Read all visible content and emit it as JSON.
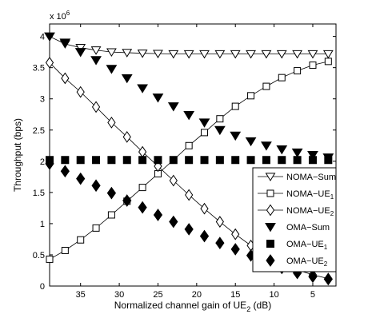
{
  "chart_data": {
    "type": "line",
    "xlabel": "Normalized channel gain of UE",
    "xlabel_sub": "2",
    "xlabel_unit": " (dB)",
    "ylabel": "Throughput (bps)",
    "y_multiplier_base": "x 10",
    "y_multiplier_exp": "6",
    "xlim": [
      39,
      2
    ],
    "x_reversed": true,
    "ylim": [
      0,
      4200000
    ],
    "x_ticks": [
      35,
      30,
      25,
      20,
      15,
      10,
      5
    ],
    "x_tick_labels": [
      "35",
      "30",
      "25",
      "20",
      "15",
      "10",
      "5"
    ],
    "y_ticks": [
      0,
      500000,
      1000000,
      1500000,
      2000000,
      2500000,
      3000000,
      3500000,
      4000000
    ],
    "y_tick_labels": [
      "0",
      "0.5",
      "1",
      "1.5",
      "2",
      "2.5",
      "3",
      "3.5",
      "4"
    ],
    "grid": false,
    "legend_position": "right",
    "series": [
      {
        "name": "NOMA−Sum",
        "name_sub": "",
        "marker": "triangle-down-open",
        "line": true,
        "x": [
          39,
          37,
          35,
          33,
          31,
          29,
          27,
          25,
          23,
          21,
          19,
          17,
          15,
          13,
          11,
          9,
          7,
          5,
          3
        ],
        "y": [
          4000000,
          3880000,
          3820000,
          3780000,
          3750000,
          3740000,
          3730000,
          3725000,
          3720000,
          3720000,
          3720000,
          3720000,
          3720000,
          3720000,
          3720000,
          3720000,
          3720000,
          3720000,
          3720000
        ]
      },
      {
        "name": "NOMA−UE",
        "name_sub": "1",
        "marker": "square-open",
        "line": true,
        "x": [
          39,
          37,
          35,
          33,
          31,
          29,
          27,
          25,
          23,
          21,
          19,
          17,
          15,
          13,
          11,
          9,
          7,
          5,
          3
        ],
        "y": [
          430000,
          570000,
          740000,
          930000,
          1140000,
          1360000,
          1580000,
          1800000,
          2020000,
          2250000,
          2460000,
          2680000,
          2880000,
          3050000,
          3200000,
          3340000,
          3450000,
          3540000,
          3600000
        ]
      },
      {
        "name": "NOMA−UE",
        "name_sub": "2",
        "marker": "diamond-open",
        "line": true,
        "x": [
          39,
          37,
          35,
          33,
          31,
          29,
          27,
          25,
          23,
          21,
          19,
          17,
          15,
          13,
          11,
          9,
          7,
          5,
          3
        ],
        "y": [
          3580000,
          3330000,
          3110000,
          2870000,
          2620000,
          2390000,
          2150000,
          1920000,
          1690000,
          1460000,
          1240000,
          1030000,
          830000,
          650000,
          500000,
          370000,
          260000,
          180000,
          120000
        ]
      },
      {
        "name": "OMA−Sum",
        "name_sub": "",
        "marker": "triangle-down-filled",
        "line": false,
        "x": [
          39,
          37,
          35,
          33,
          31,
          29,
          27,
          25,
          23,
          21,
          19,
          17,
          15,
          13,
          11,
          9,
          7,
          5,
          3
        ],
        "y": [
          4000000,
          3900000,
          3750000,
          3620000,
          3480000,
          3330000,
          3170000,
          3020000,
          2880000,
          2740000,
          2620000,
          2500000,
          2410000,
          2320000,
          2250000,
          2190000,
          2140000,
          2100000,
          2060000
        ]
      },
      {
        "name": "OMA−UE",
        "name_sub": "1",
        "marker": "square-filled",
        "line": false,
        "x": [
          39,
          37,
          35,
          33,
          31,
          29,
          27,
          25,
          23,
          21,
          19,
          17,
          15,
          13,
          11,
          9,
          7,
          5,
          3
        ],
        "y": [
          2020000,
          2020000,
          2020000,
          2020000,
          2020000,
          2020000,
          2020000,
          2020000,
          2020000,
          2020000,
          2020000,
          2020000,
          2020000,
          2020000,
          2020000,
          2020000,
          2020000,
          2020000,
          2020000
        ]
      },
      {
        "name": "OMA−UE",
        "name_sub": "2",
        "marker": "diamond-filled",
        "line": false,
        "x": [
          39,
          37,
          35,
          33,
          31,
          29,
          27,
          25,
          23,
          21,
          19,
          17,
          15,
          13,
          11,
          9,
          7,
          5,
          3
        ],
        "y": [
          1960000,
          1840000,
          1720000,
          1610000,
          1490000,
          1370000,
          1260000,
          1140000,
          1030000,
          910000,
          800000,
          690000,
          590000,
          490000,
          380000,
          290000,
          210000,
          150000,
          110000
        ]
      }
    ]
  }
}
